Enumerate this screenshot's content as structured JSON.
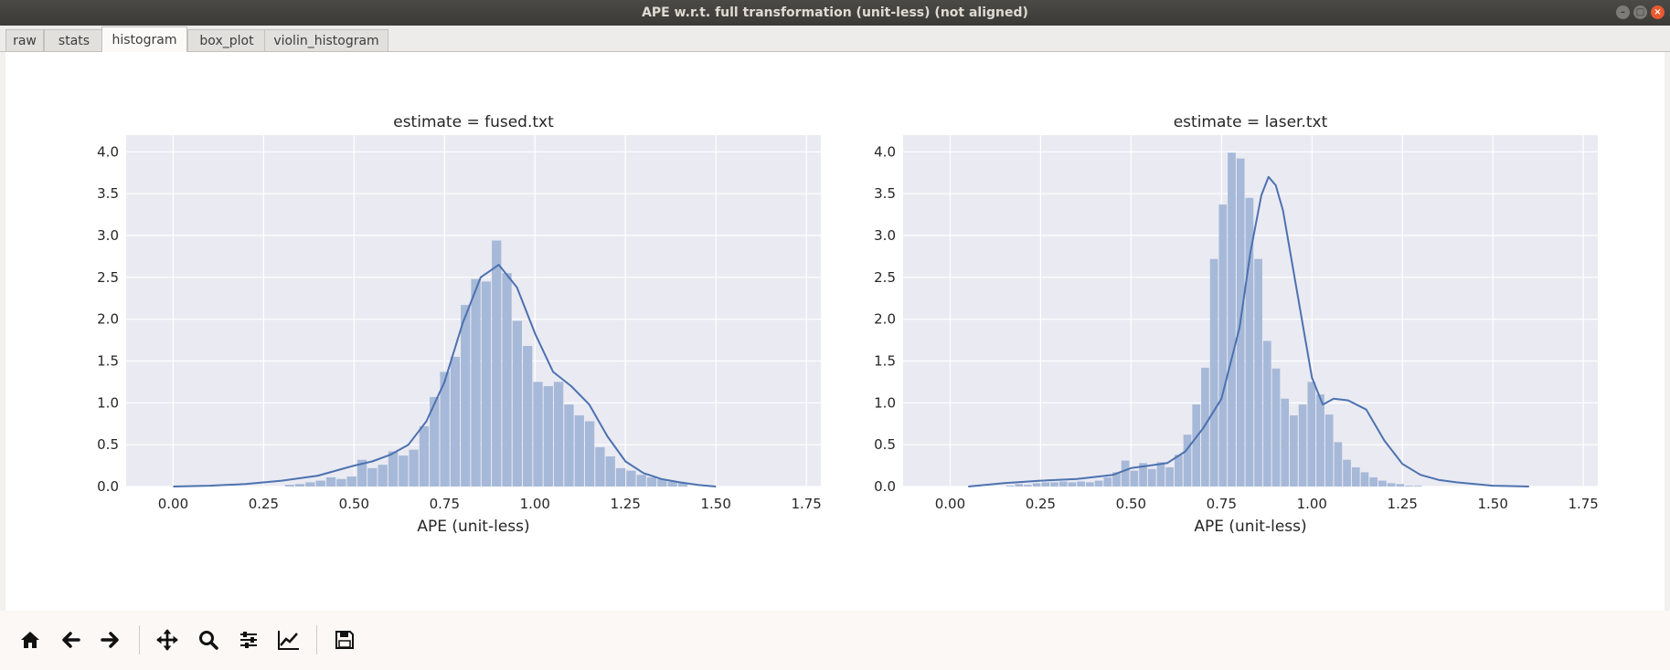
{
  "window": {
    "title": "APE w.r.t. full transformation (unit-less) (not aligned)",
    "buttons": {
      "minimize": "–",
      "maximize": "□",
      "close": "×"
    }
  },
  "tabs": [
    {
      "label": "raw",
      "active": false
    },
    {
      "label": "stats",
      "active": false
    },
    {
      "label": "histogram",
      "active": true
    },
    {
      "label": "box_plot",
      "active": false
    },
    {
      "label": "violin_histogram",
      "active": false
    }
  ],
  "toolbar": {
    "buttons": [
      "home-icon",
      "back-arrow-icon",
      "forward-arrow-icon",
      "pan-icon",
      "zoom-icon",
      "subplots-configure-icon",
      "axes-edit-icon",
      "save-icon"
    ]
  },
  "colors": {
    "plot_background": "#eaeaf2",
    "bar_fill": "#a7b9d8",
    "kde_line": "#4c72b0",
    "grid": "#ffffff"
  },
  "chart_data": [
    {
      "type": "bar",
      "title": "estimate = fused.txt",
      "xlabel": "APE (unit-less)",
      "ylabel": "",
      "xlim": [
        -0.13,
        1.79
      ],
      "ylim": [
        0,
        4.2
      ],
      "xticks": [
        "0.00",
        "0.25",
        "0.50",
        "0.75",
        "1.00",
        "1.25",
        "1.50",
        "1.75"
      ],
      "yticks": [
        "0.0",
        "0.5",
        "1.0",
        "1.5",
        "2.0",
        "2.5",
        "3.0",
        "3.5",
        "4.0"
      ],
      "grid": true,
      "bin_start": 0.05,
      "bin_width": 0.0286,
      "values": [
        0.0,
        0.0,
        0.0,
        0.0,
        0.0,
        0.0,
        0.0,
        0.0,
        0.0,
        0.02,
        0.03,
        0.05,
        0.07,
        0.11,
        0.09,
        0.12,
        0.32,
        0.22,
        0.26,
        0.42,
        0.37,
        0.44,
        0.72,
        1.07,
        1.37,
        1.55,
        2.17,
        2.48,
        2.45,
        2.94,
        2.55,
        1.98,
        1.68,
        1.25,
        1.2,
        1.25,
        0.98,
        0.85,
        0.78,
        0.47,
        0.36,
        0.22,
        0.19,
        0.14,
        0.11,
        0.09,
        0.06,
        0.04
      ],
      "kde_x": [
        0.0,
        0.1,
        0.2,
        0.3,
        0.4,
        0.5,
        0.55,
        0.6,
        0.65,
        0.7,
        0.75,
        0.8,
        0.85,
        0.9,
        0.95,
        1.0,
        1.05,
        1.1,
        1.15,
        1.2,
        1.25,
        1.3,
        1.35,
        1.4,
        1.45,
        1.5
      ],
      "kde_y": [
        0.0,
        0.01,
        0.03,
        0.07,
        0.13,
        0.25,
        0.3,
        0.38,
        0.5,
        0.78,
        1.25,
        1.95,
        2.5,
        2.65,
        2.38,
        1.83,
        1.37,
        1.2,
        0.98,
        0.6,
        0.3,
        0.16,
        0.09,
        0.05,
        0.02,
        0.0
      ]
    },
    {
      "type": "bar",
      "title": "estimate = laser.txt",
      "xlabel": "APE (unit-less)",
      "ylabel": "",
      "xlim": [
        -0.13,
        1.79
      ],
      "ylim": [
        0,
        4.2
      ],
      "xticks": [
        "0.00",
        "0.25",
        "0.50",
        "0.75",
        "1.00",
        "1.25",
        "1.50",
        "1.75"
      ],
      "yticks": [
        "0.0",
        "0.5",
        "1.0",
        "1.5",
        "2.0",
        "2.5",
        "3.0",
        "3.5",
        "4.0"
      ],
      "grid": true,
      "bin_start": 0.08,
      "bin_width": 0.0245,
      "values": [
        0.0,
        0.0,
        0.0,
        0.01,
        0.03,
        0.02,
        0.04,
        0.05,
        0.05,
        0.06,
        0.05,
        0.06,
        0.05,
        0.07,
        0.11,
        0.17,
        0.31,
        0.19,
        0.28,
        0.21,
        0.29,
        0.23,
        0.38,
        0.62,
        0.98,
        1.42,
        2.72,
        3.37,
        3.99,
        3.92,
        3.45,
        2.72,
        1.74,
        1.41,
        1.05,
        0.85,
        0.98,
        1.25,
        1.1,
        0.86,
        0.53,
        0.32,
        0.23,
        0.17,
        0.11,
        0.07,
        0.04,
        0.03,
        0.01,
        0.01
      ],
      "kde_x": [
        0.05,
        0.15,
        0.25,
        0.35,
        0.45,
        0.5,
        0.55,
        0.6,
        0.65,
        0.7,
        0.75,
        0.8,
        0.83,
        0.86,
        0.88,
        0.9,
        0.92,
        0.95,
        1.0,
        1.03,
        1.06,
        1.1,
        1.15,
        1.2,
        1.25,
        1.3,
        1.35,
        1.4,
        1.45,
        1.5,
        1.6
      ],
      "kde_y": [
        0.0,
        0.04,
        0.07,
        0.09,
        0.14,
        0.22,
        0.25,
        0.28,
        0.42,
        0.7,
        1.05,
        1.9,
        2.8,
        3.48,
        3.7,
        3.6,
        3.3,
        2.55,
        1.3,
        0.98,
        1.05,
        1.03,
        0.92,
        0.55,
        0.27,
        0.14,
        0.08,
        0.05,
        0.03,
        0.01,
        0.0
      ]
    }
  ]
}
